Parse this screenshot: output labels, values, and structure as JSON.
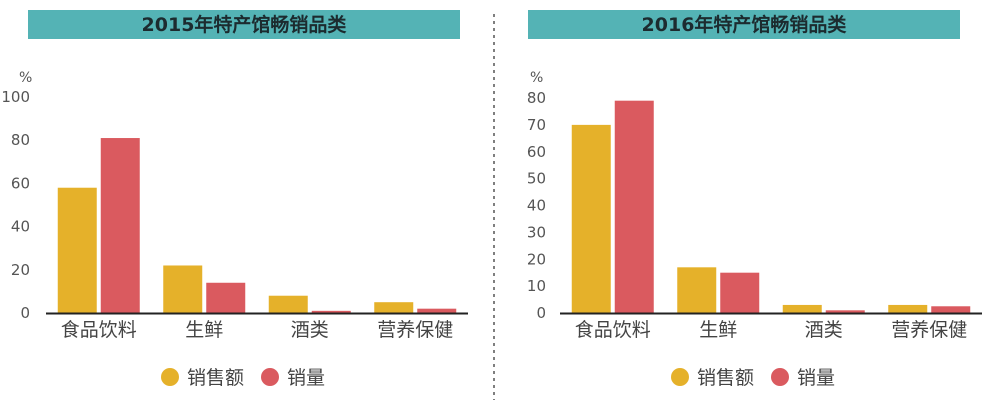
{
  "colors": {
    "title_bar": "#54b3b5",
    "sales_amount": "#e5b12a",
    "sales_volume": "#da5a5f",
    "axis": "#222222",
    "divider": "#555555"
  },
  "chart_data": [
    {
      "type": "bar",
      "title": "2015年特产馆畅销品类",
      "ylabel": "%",
      "ylim": [
        0,
        100
      ],
      "yticks": [
        0,
        20,
        40,
        60,
        80,
        100
      ],
      "categories": [
        "食品饮料",
        "生鲜",
        "酒类",
        "营养保健"
      ],
      "series": [
        {
          "name": "销售额",
          "values": [
            58,
            22,
            8,
            5
          ]
        },
        {
          "name": "销量",
          "values": [
            81,
            14,
            1,
            2
          ]
        }
      ],
      "legend": "bottom",
      "grid": false
    },
    {
      "type": "bar",
      "title": "2016年特产馆畅销品类",
      "ylabel": "%",
      "ylim": [
        0,
        80
      ],
      "yticks": [
        0,
        10,
        20,
        30,
        40,
        50,
        60,
        70,
        80
      ],
      "categories": [
        "食品饮料",
        "生鲜",
        "酒类",
        "营养保健"
      ],
      "series": [
        {
          "name": "销售额",
          "values": [
            70,
            17,
            3,
            3
          ]
        },
        {
          "name": "销量",
          "values": [
            79,
            15,
            1,
            2.5
          ]
        }
      ],
      "legend": "bottom",
      "grid": false
    }
  ]
}
